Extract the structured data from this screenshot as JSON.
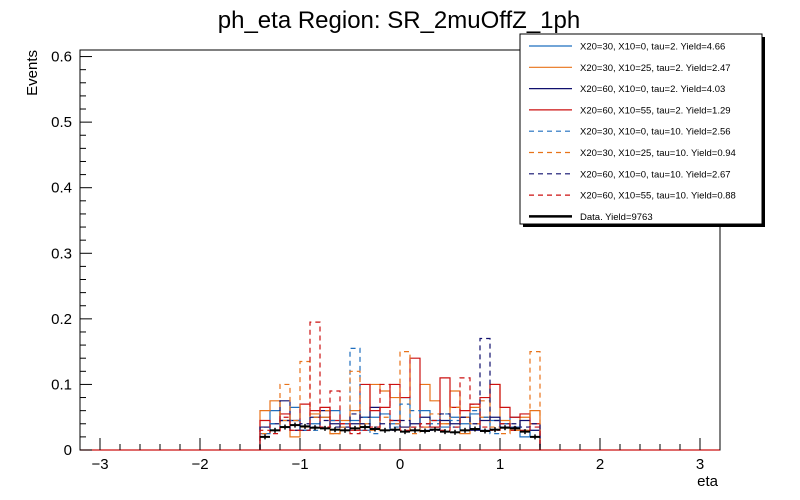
{
  "chart_data": {
    "type": "histogram",
    "title": "ph_eta Region: SR_2muOffZ_1ph",
    "xlabel": "eta",
    "ylabel": "Events",
    "xlim": [
      -3.2,
      3.2
    ],
    "ylim": [
      0,
      0.61
    ],
    "xticks": [
      -3,
      -2,
      -1,
      0,
      1,
      2,
      3
    ],
    "xtick_labels": [
      "−3",
      "−2",
      "−1",
      "0",
      "1",
      "2",
      "3"
    ],
    "yticks": [
      0,
      0.1,
      0.2,
      0.3,
      0.4,
      0.5,
      0.6
    ],
    "ytick_labels": [
      "0",
      "0.1",
      "0.2",
      "0.3",
      "0.4",
      "0.5",
      "0.6"
    ],
    "bin_low": -1.4,
    "bin_width": 0.1,
    "legend_position": "top-right",
    "series": [
      {
        "name": "X20=30, X10=0, tau=2. Yield=4.66",
        "color": "#1f6fbf",
        "style": "solid",
        "values": [
          0.025,
          0.06,
          0.045,
          0.065,
          0.03,
          0.04,
          0.05,
          0.06,
          0.035,
          0.045,
          0.03,
          0.05,
          0.055,
          0.04,
          0.08,
          0.03,
          0.06,
          0.045,
          0.035,
          0.05,
          0.04,
          0.055,
          0.03,
          0.045,
          0.035,
          0.05,
          0.02,
          0.03
        ]
      },
      {
        "name": "X20=30, X10=25, tau=2. Yield=2.47",
        "color": "#e8731a",
        "style": "solid",
        "values": [
          0.06,
          0.075,
          0.045,
          0.02,
          0.035,
          0.055,
          0.05,
          0.025,
          0.045,
          0.06,
          0.04,
          0.1,
          0.09,
          0.08,
          0.035,
          0.03,
          0.1,
          0.075,
          0.04,
          0.09,
          0.025,
          0.065,
          0.05,
          0.1,
          0.045,
          0.03,
          0.05,
          0.06
        ]
      },
      {
        "name": "X20=60, X10=0, tau=2. Yield=4.03",
        "color": "#10106e",
        "style": "solid",
        "values": [
          0.035,
          0.04,
          0.075,
          0.045,
          0.03,
          0.05,
          0.06,
          0.04,
          0.035,
          0.04,
          0.05,
          0.065,
          0.03,
          0.045,
          0.035,
          0.04,
          0.05,
          0.035,
          0.045,
          0.04,
          0.05,
          0.03,
          0.045,
          0.05,
          0.04,
          0.035,
          0.045,
          0.03
        ]
      },
      {
        "name": "X20=60, X10=55, tau=2. Yield=1.29",
        "color": "#cc1111",
        "style": "solid",
        "values": [
          0.045,
          0.03,
          0.055,
          0.03,
          0.07,
          0.06,
          0.065,
          0.045,
          0.04,
          0.03,
          0.1,
          0.06,
          0.065,
          0.1,
          0.08,
          0.14,
          0.035,
          0.035,
          0.11,
          0.065,
          0.06,
          0.07,
          0.08,
          0.1,
          0.065,
          0.05,
          0.055,
          0.04
        ]
      },
      {
        "name": "X20=30, X10=0, tau=10. Yield=2.56",
        "color": "#1f6fbf",
        "style": "dashed",
        "values": [
          0.025,
          0.04,
          0.035,
          0.045,
          0.03,
          0.03,
          0.035,
          0.045,
          0.04,
          0.155,
          0.05,
          0.025,
          0.03,
          0.035,
          0.07,
          0.06,
          0.03,
          0.04,
          0.055,
          0.045,
          0.03,
          0.06,
          0.05,
          0.025,
          0.04,
          0.035,
          0.03,
          0.02
        ]
      },
      {
        "name": "X20=30, X10=25, tau=10. Yield=0.94",
        "color": "#e8731a",
        "style": "dashed",
        "values": [
          0.025,
          0.03,
          0.1,
          0.045,
          0.135,
          0.05,
          0.06,
          0.025,
          0.035,
          0.12,
          0.035,
          0.03,
          0.05,
          0.04,
          0.15,
          0.025,
          0.035,
          0.055,
          0.04,
          0.065,
          0.05,
          0.04,
          0.075,
          0.035,
          0.025,
          0.03,
          0.03,
          0.15
        ]
      },
      {
        "name": "X20=60, X10=0, tau=10. Yield=2.67",
        "color": "#10106e",
        "style": "dashed",
        "values": [
          0.035,
          0.03,
          0.045,
          0.03,
          0.04,
          0.035,
          0.045,
          0.035,
          0.03,
          0.055,
          0.04,
          0.035,
          0.04,
          0.03,
          0.045,
          0.035,
          0.04,
          0.03,
          0.055,
          0.035,
          0.05,
          0.04,
          0.17,
          0.045,
          0.035,
          0.04,
          0.035,
          0.04
        ]
      },
      {
        "name": "X20=60, X10=55, tau=10. Yield=0.88",
        "color": "#cc1111",
        "style": "dashed",
        "values": [
          0.03,
          0.025,
          0.05,
          0.03,
          0.03,
          0.195,
          0.035,
          0.09,
          0.04,
          0.025,
          0.03,
          0.035,
          0.1,
          0.045,
          0.03,
          0.035,
          0.04,
          0.045,
          0.03,
          0.035,
          0.11,
          0.07,
          0.035,
          0.03,
          0.04,
          0.03,
          0.03,
          0.035
        ]
      }
    ],
    "data_series": {
      "name": "Data. Yield=9763",
      "color": "#000000",
      "values": [
        0.02,
        0.03,
        0.035,
        0.038,
        0.036,
        0.034,
        0.033,
        0.031,
        0.03,
        0.033,
        0.035,
        0.032,
        0.03,
        0.031,
        0.028,
        0.03,
        0.029,
        0.031,
        0.028,
        0.027,
        0.03,
        0.032,
        0.029,
        0.031,
        0.034,
        0.033,
        0.028,
        0.02
      ]
    }
  }
}
